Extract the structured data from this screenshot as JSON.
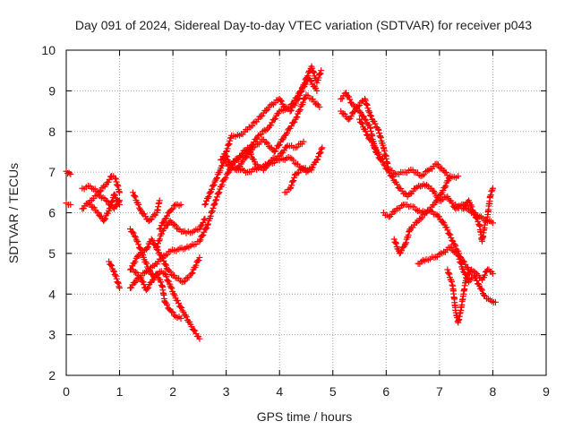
{
  "chart_data": {
    "type": "scatter",
    "title": "Day 091 of 2024, Sidereal Day-to-day VTEC variation (SDTVAR) for receiver p043",
    "xlabel": "GPS time / hours",
    "ylabel": "SDTVAR / TECUs",
    "xlim": [
      0,
      9
    ],
    "ylim": [
      2,
      10
    ],
    "xticks": [
      "0",
      "1",
      "2",
      "3",
      "4",
      "5",
      "6",
      "7",
      "8",
      "9"
    ],
    "yticks": [
      "2",
      "3",
      "4",
      "5",
      "6",
      "7",
      "8",
      "9",
      "10"
    ],
    "grid": true,
    "marker": "+",
    "color": "#ff0000",
    "series": [
      {
        "x": [
          0.0,
          0.08
        ],
        "y": [
          7.02,
          6.95
        ]
      },
      {
        "x": [
          0.0,
          0.08
        ],
        "y": [
          6.24,
          6.2
        ]
      },
      {
        "x": [
          0.3,
          0.45,
          0.6,
          0.75,
          0.85,
          0.92,
          1.0
        ],
        "y": [
          6.6,
          6.65,
          6.5,
          6.7,
          6.9,
          6.85,
          6.5
        ]
      },
      {
        "x": [
          0.3,
          0.45,
          0.6,
          0.75,
          0.9,
          1.0
        ],
        "y": [
          6.1,
          6.3,
          6.45,
          6.3,
          6.1,
          6.3
        ]
      },
      {
        "x": [
          0.45,
          0.6,
          0.7,
          0.8,
          0.9,
          1.0
        ],
        "y": [
          6.2,
          6.0,
          5.8,
          6.05,
          6.45,
          6.2
        ]
      },
      {
        "x": [
          0.8,
          0.9,
          1.0
        ],
        "y": [
          4.8,
          4.55,
          4.15
        ]
      },
      {
        "x": [
          1.25,
          1.4,
          1.55,
          1.7,
          1.75
        ],
        "y": [
          6.5,
          6.05,
          5.8,
          6.0,
          6.3
        ]
      },
      {
        "x": [
          1.2,
          1.3,
          1.45,
          1.55,
          1.65,
          1.75,
          1.85,
          1.95,
          2.05,
          2.2,
          2.35,
          2.5
        ],
        "y": [
          5.6,
          5.4,
          4.9,
          4.6,
          4.4,
          4.55,
          4.5,
          4.2,
          3.9,
          3.55,
          3.2,
          2.9
        ]
      },
      {
        "x": [
          1.25,
          1.4,
          1.5,
          1.6,
          1.7,
          1.8,
          1.85,
          1.95,
          2.05,
          2.15
        ],
        "y": [
          4.6,
          4.4,
          4.1,
          4.3,
          4.5,
          4.2,
          3.8,
          3.6,
          3.45,
          3.4
        ]
      },
      {
        "x": [
          1.2,
          1.35,
          1.5,
          1.65,
          1.8,
          1.95,
          2.1,
          2.3,
          2.5,
          2.65,
          2.8,
          2.95,
          3.05,
          3.1,
          3.2
        ],
        "y": [
          4.15,
          4.4,
          4.55,
          4.7,
          4.9,
          5.05,
          5.1,
          5.15,
          5.3,
          5.7,
          6.3,
          6.8,
          7.0,
          7.2,
          7.3
        ]
      },
      {
        "x": [
          1.2,
          1.35,
          1.5,
          1.6,
          1.7,
          1.8,
          1.9,
          2.05,
          2.2,
          2.35,
          2.5
        ],
        "y": [
          4.6,
          4.95,
          5.1,
          5.35,
          5.1,
          4.9,
          4.6,
          4.4,
          4.3,
          4.5,
          4.9
        ]
      },
      {
        "x": [
          1.7,
          1.8,
          1.95,
          2.1,
          2.25,
          2.4,
          2.5,
          2.6
        ],
        "y": [
          5.15,
          5.55,
          5.8,
          5.6,
          5.5,
          5.55,
          5.6,
          5.85
        ]
      },
      {
        "x": [
          1.75,
          1.85,
          1.95,
          2.05,
          2.15
        ],
        "y": [
          5.6,
          5.85,
          6.05,
          6.2,
          6.2
        ]
      },
      {
        "x": [
          2.6,
          2.7,
          2.8,
          2.9,
          3.0,
          3.1,
          3.2,
          3.3,
          3.5,
          3.7,
          3.9,
          4.1,
          4.3,
          4.5,
          4.6,
          4.75
        ],
        "y": [
          6.2,
          6.5,
          6.8,
          7.1,
          7.4,
          7.1,
          7.05,
          7.25,
          7.6,
          7.8,
          7.5,
          7.9,
          8.3,
          8.9,
          8.8,
          8.6
        ]
      },
      {
        "x": [
          2.9,
          3.0,
          3.1,
          3.25,
          3.4,
          3.6,
          3.8,
          4.0,
          4.1,
          4.2,
          4.35,
          4.5,
          4.6,
          4.7,
          4.78
        ],
        "y": [
          7.3,
          7.5,
          7.9,
          7.9,
          8.05,
          8.3,
          8.6,
          8.8,
          8.6,
          8.5,
          8.8,
          9.3,
          9.6,
          9.2,
          9.5
        ]
      },
      {
        "x": [
          3.1,
          3.25,
          3.4,
          3.55,
          3.7,
          3.85,
          4.0,
          4.15,
          4.3,
          4.45
        ],
        "y": [
          7.2,
          7.4,
          7.6,
          7.2,
          7.05,
          7.3,
          7.4,
          7.65,
          7.6,
          7.75
        ]
      },
      {
        "x": [
          3.0,
          3.2,
          3.4,
          3.6,
          3.8,
          4.0,
          4.2,
          4.4,
          4.5,
          4.6,
          4.7,
          4.8
        ],
        "y": [
          7.2,
          7.1,
          7.0,
          7.1,
          7.2,
          7.3,
          7.35,
          7.1,
          7.0,
          7.1,
          7.3,
          7.6
        ]
      },
      {
        "x": [
          3.2,
          3.4,
          3.6,
          3.8,
          4.0,
          4.2,
          4.4,
          4.55,
          4.7
        ],
        "y": [
          7.3,
          7.5,
          7.9,
          8.1,
          8.5,
          8.6,
          9.0,
          9.3,
          9.0
        ]
      },
      {
        "x": [
          4.1,
          4.2,
          4.3,
          4.45,
          4.6
        ],
        "y": [
          6.5,
          6.6,
          6.95,
          7.1,
          7.05
        ]
      },
      {
        "x": [
          5.15,
          5.25,
          5.35,
          5.5,
          5.6,
          5.7,
          5.8,
          5.9,
          6.0
        ],
        "y": [
          8.8,
          8.95,
          8.7,
          8.5,
          8.3,
          8.1,
          7.5,
          7.3,
          7.4
        ]
      },
      {
        "x": [
          5.15,
          5.3,
          5.45,
          5.6,
          5.7,
          5.85,
          5.95,
          6.05,
          6.2,
          6.35,
          6.5,
          6.65,
          6.8,
          6.95,
          7.1,
          7.2,
          7.35
        ],
        "y": [
          8.5,
          8.3,
          8.6,
          8.8,
          8.4,
          8.05,
          7.6,
          7.05,
          6.95,
          7.0,
          7.05,
          6.9,
          7.05,
          7.2,
          7.0,
          6.85,
          6.9
        ]
      },
      {
        "x": [
          5.5,
          5.65,
          5.8,
          5.95,
          6.1,
          6.25,
          6.4,
          6.55,
          6.7,
          6.85,
          7.0,
          7.15,
          7.3,
          7.45,
          7.6,
          7.75,
          7.9,
          8.0
        ],
        "y": [
          8.3,
          7.9,
          7.6,
          7.2,
          6.9,
          6.6,
          6.4,
          6.6,
          6.7,
          6.6,
          6.3,
          6.4,
          6.1,
          6.2,
          6.0,
          5.9,
          5.8,
          5.75
        ]
      },
      {
        "x": [
          5.95,
          6.05,
          6.2,
          6.35,
          6.5,
          6.65,
          6.8,
          6.95,
          7.1,
          7.25,
          7.4,
          7.55,
          7.7,
          7.8,
          7.9,
          7.95,
          8.0
        ],
        "y": [
          6.0,
          5.9,
          6.1,
          6.2,
          6.15,
          6.0,
          6.05,
          5.95,
          5.7,
          5.3,
          4.9,
          4.6,
          4.5,
          4.35,
          4.6,
          4.55,
          4.5
        ]
      },
      {
        "x": [
          6.15,
          6.25,
          6.35,
          6.45,
          6.6,
          6.75,
          6.9,
          7.05,
          7.2
        ],
        "y": [
          5.35,
          5.0,
          5.2,
          5.6,
          5.8,
          6.0,
          6.2,
          6.5,
          6.9
        ]
      },
      {
        "x": [
          6.6,
          6.75,
          6.9,
          7.05,
          7.2,
          7.35,
          7.45,
          7.55,
          7.65,
          7.75,
          7.85,
          7.95,
          8.05
        ],
        "y": [
          4.75,
          4.85,
          4.9,
          5.0,
          5.15,
          4.95,
          4.55,
          4.3,
          4.45,
          4.2,
          3.95,
          3.85,
          3.8
        ]
      },
      {
        "x": [
          7.15,
          7.25,
          7.3,
          7.35,
          7.4,
          7.45,
          7.5,
          7.6
        ],
        "y": [
          4.6,
          4.2,
          3.6,
          3.3,
          3.6,
          4.0,
          4.4,
          4.6
        ]
      },
      {
        "x": [
          7.3,
          7.45,
          7.55,
          7.65,
          7.75,
          7.8,
          7.85,
          7.9,
          7.95,
          8.0
        ],
        "y": [
          6.2,
          6.1,
          6.3,
          6.0,
          5.7,
          5.3,
          5.7,
          5.9,
          6.4,
          6.6
        ]
      }
    ]
  }
}
